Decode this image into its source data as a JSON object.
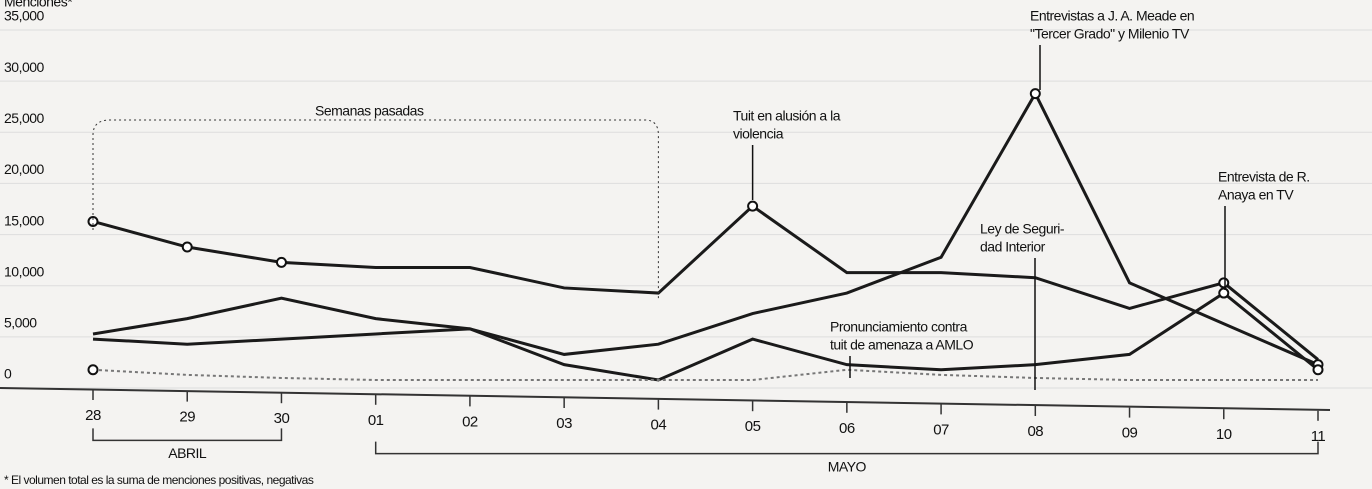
{
  "chart_data": {
    "type": "line",
    "ylabel": "Menciones*",
    "categories": [
      "28",
      "29",
      "30",
      "01",
      "02",
      "03",
      "04",
      "05",
      "06",
      "07",
      "08",
      "09",
      "10",
      "11"
    ],
    "groups": [
      {
        "label": "ABRIL",
        "from": 0,
        "to": 2
      },
      {
        "label": "MAYO",
        "from": 3,
        "to": 13
      }
    ],
    "series": [
      {
        "color": "#1a1a1a",
        "values": [
          15500,
          13000,
          11500,
          11000,
          11000,
          9000,
          8500,
          17000,
          10500,
          10500,
          10000,
          7000,
          9500,
          2000
        ]
      },
      {
        "color": "#1a1a1a",
        "values": [
          4500,
          6000,
          8000,
          6000,
          5000,
          1500,
          0,
          4000,
          1500,
          1000,
          1500,
          2500,
          8500,
          1000
        ]
      },
      {
        "color": "#1a1a1a",
        "values": [
          4000,
          3500,
          4000,
          4500,
          5000,
          2500,
          3500,
          6500,
          8500,
          12000,
          28000,
          9500,
          5500,
          1500
        ]
      },
      {
        "color": "#777777",
        "values": [
          1000,
          500,
          200,
          0,
          0,
          0,
          0,
          0,
          1000,
          500,
          200,
          0,
          0,
          0
        ]
      }
    ],
    "ylim": [
      0,
      35000
    ],
    "yticks": [
      0,
      {
        "value": 5000,
        "label": "5,000"
      },
      {
        "value": 10000,
        "label": "10,000"
      },
      {
        "value": 15000,
        "label": "15,000"
      },
      {
        "value": 20000,
        "label": "20,000"
      },
      {
        "value": 25000,
        "label": "25,000"
      },
      {
        "value": 30000,
        "label": "30,000"
      },
      {
        "value": 35000,
        "label": "35,000"
      }
    ],
    "grid": true,
    "annotations": [
      {
        "lines": [
          "Semanas pasadas"
        ]
      },
      {
        "lines": [
          "Tuit en alusión a la",
          "violencia"
        ]
      },
      {
        "lines": [
          "Entrevistas a J. A. Meade en",
          "\"Tercer Grado\" y Milenio TV"
        ]
      },
      {
        "lines": [
          "Entrevista de R.",
          "Anaya en TV"
        ]
      },
      {
        "lines": [
          "Ley de Seguri-",
          "dad Interior"
        ]
      },
      {
        "lines": [
          "Pronunciamiento contra",
          "tuit de amenaza a AMLO"
        ]
      }
    ],
    "footnote": "* El volumen total es la suma de menciones positivas, negativas"
  }
}
